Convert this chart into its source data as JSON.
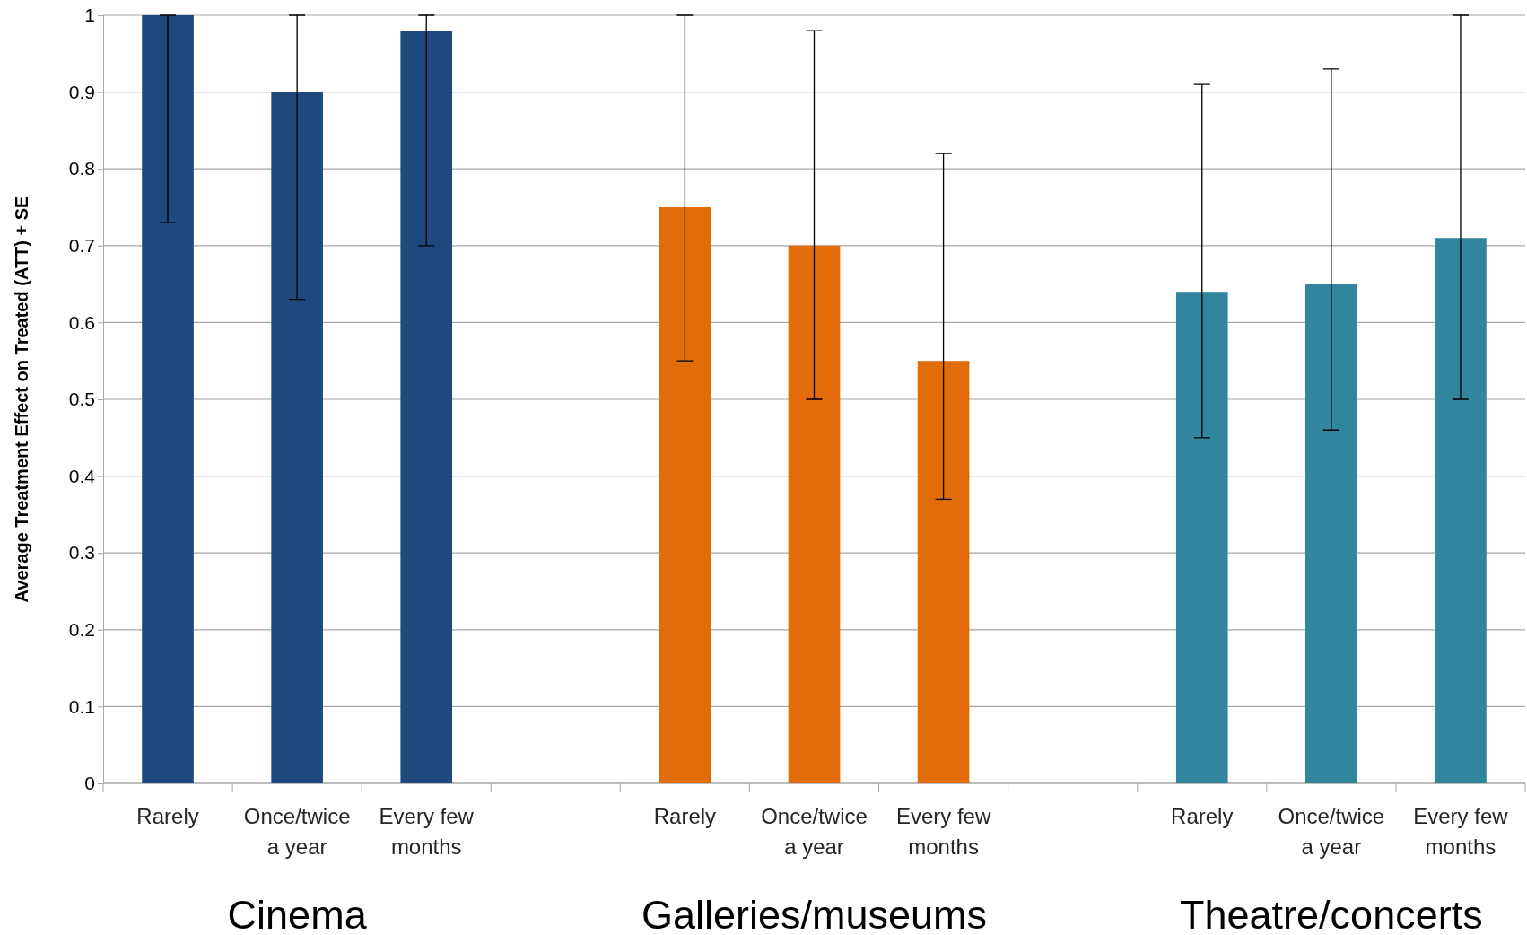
{
  "chart_data": {
    "type": "bar",
    "ylabel": "Average Treatment Effect on Treated (ATT) + SE",
    "categories": [
      "Rarely",
      "Once/twice a year",
      "Every few months",
      null,
      "Rarely",
      "Once/twice a year",
      "Every few months",
      null,
      "Rarely",
      "Once/twice a year",
      "Every few months"
    ],
    "values": [
      1.0,
      0.9,
      0.98,
      null,
      0.75,
      0.7,
      0.55,
      null,
      0.64,
      0.65,
      0.71
    ],
    "colors": [
      "#1f497d",
      "#1f497d",
      "#1f497d",
      null,
      "#e36c0a",
      "#e36c0a",
      "#e36c0a",
      null,
      "#31859c",
      "#31859c",
      "#31859c"
    ],
    "errors": [
      [
        0.73,
        1
      ],
      [
        0.63,
        1
      ],
      [
        0.7,
        1
      ],
      null,
      [
        0.55,
        1
      ],
      [
        0.5,
        0.98
      ],
      [
        0.37,
        0.82
      ],
      null,
      [
        0.45,
        0.91
      ],
      [
        0.46,
        0.93
      ],
      [
        0.5,
        1
      ]
    ],
    "annotations": [
      "Cinema",
      "Galleries/museums",
      "Theatre/concerts"
    ],
    "ylim": [
      0,
      1
    ],
    "yticks": [
      0,
      {
        "value": 0.1,
        "label": "0.1"
      },
      {
        "value": 0.2,
        "label": "0.2"
      },
      {
        "value": 0.3,
        "label": "0.3"
      },
      {
        "value": 0.4,
        "label": "0.4"
      },
      {
        "value": 0.5,
        "label": "0.5"
      },
      {
        "value": 0.6,
        "label": "0.6"
      },
      {
        "value": 0.7,
        "label": "0.7"
      },
      {
        "value": 0.8,
        "label": "0.8"
      },
      {
        "value": 0.9,
        "label": "0.9"
      },
      1
    ],
    "grid": "y"
  }
}
